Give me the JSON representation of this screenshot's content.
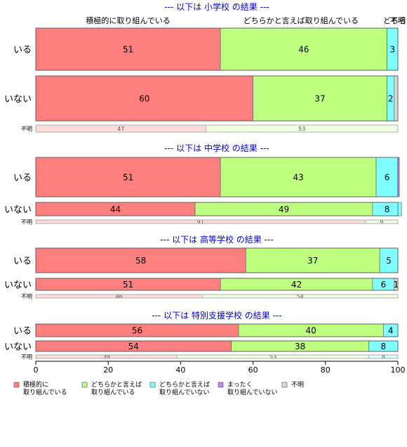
{
  "chart_data": {
    "type": "bar",
    "orientation": "horizontal",
    "stacked": true,
    "xlim": [
      0,
      100
    ],
    "xticks": [
      0,
      20,
      40,
      60,
      80,
      100
    ],
    "grid": false,
    "legend_position": "bottom-left",
    "top_category_labels": [
      "積極的に取り組んでいる",
      "どちらかと言えば取り組んでいる",
      "どちらかと言えば取り組んでいない",
      "不明"
    ],
    "legend": [
      {
        "line1": "積極的に",
        "line2": "取り組んでいる",
        "color": "#ff7f7f"
      },
      {
        "line1": "どちらかと言えば",
        "line2": "取り組んでいる",
        "color": "#bfff7f"
      },
      {
        "line1": "どちらかと言えば",
        "line2": "取り組んでいない",
        "color": "#7fffff"
      },
      {
        "line1": "まったく",
        "line2": "取り組んでいない",
        "color": "#bf7fff"
      },
      {
        "line1": "不明",
        "line2": "",
        "color": "#d9d9d9"
      }
    ],
    "sections": [
      {
        "title": "--- 以下は 小学校 の結果 ---",
        "rows": [
          {
            "label": "いる",
            "values": [
              51,
              46,
              3,
              0,
              0
            ],
            "value_labels": [
              "51",
              "46",
              "3",
              "",
              ""
            ]
          },
          {
            "label": "いない",
            "values": [
              60,
              37,
              2,
              0,
              1
            ],
            "value_labels": [
              "60",
              "37",
              "2",
              "",
              ""
            ]
          },
          {
            "label": "不明",
            "values": [
              47,
              53,
              0,
              0,
              0
            ],
            "value_labels": [
              "47",
              "53",
              "",
              "",
              ""
            ]
          }
        ]
      },
      {
        "title": "--- 以下は 中学校 の結果 ---",
        "rows": [
          {
            "label": "いる",
            "values": [
              51,
              43,
              6,
              0.4,
              0
            ],
            "value_labels": [
              "51",
              "43",
              "6",
              "",
              ""
            ]
          },
          {
            "label": "いない",
            "values": [
              44,
              49,
              8,
              0,
              0
            ],
            "value_labels": [
              "44",
              "49",
              "8",
              "",
              ""
            ]
          },
          {
            "label": "不明",
            "values": [
              91,
              9,
              0,
              0,
              0
            ],
            "value_labels": [
              "91",
              "9",
              "",
              "",
              ""
            ]
          }
        ]
      },
      {
        "title": "--- 以下は 高等学校 の結果 ---",
        "rows": [
          {
            "label": "いる",
            "values": [
              58,
              37,
              5,
              0,
              0
            ],
            "value_labels": [
              "58",
              "37",
              "5",
              "",
              ""
            ]
          },
          {
            "label": "いない",
            "values": [
              51,
              42,
              6,
              0,
              1
            ],
            "value_labels": [
              "51",
              "42",
              "6",
              "",
              "1"
            ]
          },
          {
            "label": "不明",
            "values": [
              46,
              54,
              0,
              0,
              0
            ],
            "value_labels": [
              "46",
              "54",
              "",
              "",
              ""
            ]
          }
        ]
      },
      {
        "title": "--- 以下は 特別支援学校 の結果 ---",
        "rows": [
          {
            "label": "いる",
            "values": [
              56,
              40,
              4,
              0,
              0
            ],
            "value_labels": [
              "56",
              "40",
              "4",
              "",
              ""
            ]
          },
          {
            "label": "いない",
            "values": [
              54,
              38,
              8,
              0,
              0
            ],
            "value_labels": [
              "54",
              "38",
              "8",
              "",
              ""
            ]
          },
          {
            "label": "不明",
            "values": [
              39,
              53,
              8,
              0,
              0
            ],
            "value_labels": [
              "39",
              "53",
              "8",
              "",
              ""
            ]
          }
        ]
      }
    ]
  }
}
